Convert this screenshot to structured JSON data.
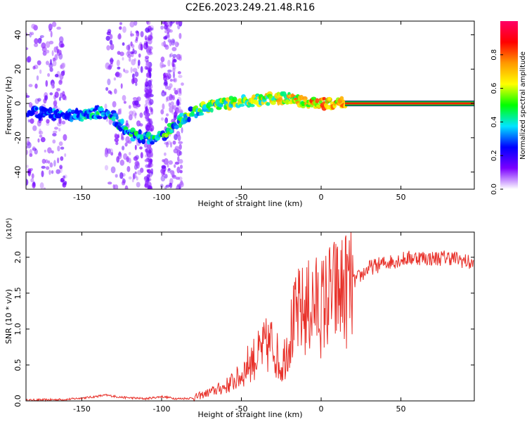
{
  "title": "C2E6.2023.249.21.48.R16",
  "chart_data": [
    {
      "type": "heatmap",
      "xlabel": "Height of straight line (km)",
      "ylabel": "Frequency (Hz)",
      "xlim": [
        -185,
        96
      ],
      "ylim": [
        -50,
        48
      ],
      "xticks": [
        -150,
        -100,
        -50,
        0,
        50
      ],
      "yticks": [
        -40,
        -20,
        0,
        20,
        40
      ],
      "ridge": {
        "description": "peak frequency ridge",
        "x": [
          -180,
          -165,
          -150,
          -140,
          -130,
          -120,
          -110,
          -100,
          -92,
          -80,
          -70,
          -60,
          -50,
          -40,
          -30,
          -20,
          -10,
          0,
          10,
          15,
          95
        ],
        "y": [
          -5,
          -7,
          -7,
          -5,
          -8,
          -18,
          -20,
          -20,
          -12,
          -5,
          -2,
          0,
          1,
          2,
          3,
          3,
          1,
          0,
          0,
          0,
          0
        ]
      },
      "colorbar": {
        "label": "Normalized spectral amplitude",
        "ticks": [
          0.0,
          0.2,
          0.4,
          0.6,
          0.8
        ],
        "range": [
          0,
          1
        ],
        "colors": [
          "#ffffff",
          "#7b00ff",
          "#0000ff",
          "#00e5ff",
          "#00ff00",
          "#ffff00",
          "#ff9900",
          "#ff0000",
          "#ff0066"
        ]
      }
    },
    {
      "type": "line",
      "xlabel": "Height of straight line (km)",
      "ylabel": "SNR (10 * v/v)",
      "scale_label": "(x10⁴)",
      "xlim": [
        -185,
        96
      ],
      "ylim": [
        0,
        2.35
      ],
      "xticks": [
        -150,
        -100,
        -50,
        0,
        50
      ],
      "yticks": [
        "0.0",
        "0.5",
        "1.0",
        "1.5",
        "2.0"
      ],
      "series": [
        {
          "color": "#e8312a",
          "x": [
            -185,
            -160,
            -145,
            -135,
            -125,
            -110,
            -100,
            -90,
            -80,
            -70,
            -60,
            -50,
            -45,
            -40,
            -35,
            -30,
            -25,
            -20,
            -15,
            -10,
            -5,
            0,
            5,
            10,
            15,
            20,
            25,
            30,
            40,
            50,
            60,
            70,
            80,
            90,
            95
          ],
          "y": [
            0.01,
            0.02,
            0.05,
            0.08,
            0.05,
            0.03,
            0.06,
            0.03,
            0.04,
            0.12,
            0.2,
            0.35,
            0.55,
            0.62,
            0.75,
            0.8,
            0.45,
            0.9,
            1.2,
            1.25,
            1.35,
            1.3,
            1.45,
            1.5,
            1.55,
            1.65,
            1.75,
            1.85,
            1.92,
            1.97,
            2.0,
            1.98,
            2.0,
            1.95,
            1.9
          ]
        }
      ]
    }
  ]
}
